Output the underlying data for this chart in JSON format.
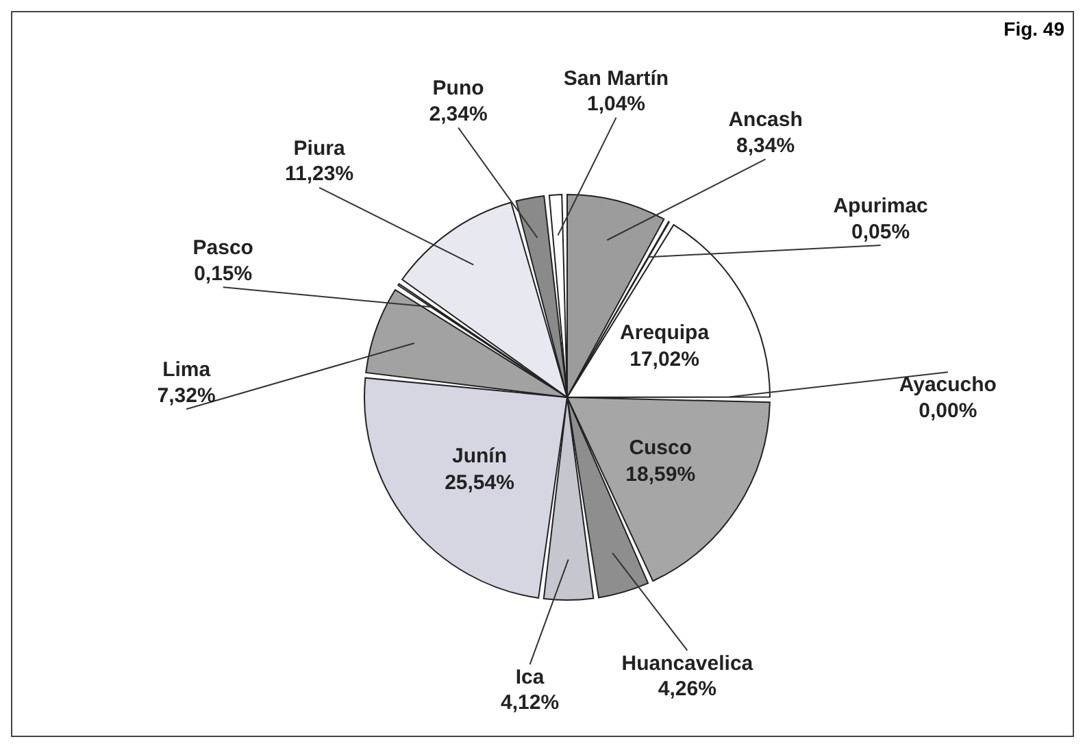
{
  "chart_data": {
    "type": "pie",
    "annotations": [
      "Fig. 49"
    ],
    "categories": [
      "Ancash",
      "Apurimac",
      "Arequipa",
      "Ayacucho",
      "Cusco",
      "Huancavelica",
      "Ica",
      "Junín",
      "Lima",
      "Pasco",
      "Piura",
      "Puno",
      "San Martín"
    ],
    "values": [
      8.34,
      0.05,
      17.02,
      0.0,
      18.59,
      4.26,
      4.12,
      25.54,
      7.32,
      0.15,
      11.23,
      2.34,
      1.04
    ],
    "value_labels": [
      "8,34%",
      "0,05%",
      "17,02%",
      "0,00%",
      "18,59%",
      "4,26%",
      "4,12%",
      "25,54%",
      "7,32%",
      "0,15%",
      "11,23%",
      "2,34%",
      "1,04%"
    ],
    "colors": [
      "#9c9c9c",
      "#bcbcbc",
      "#ffffff",
      "#e0e0e0",
      "#a6a6a6",
      "#8e8e8e",
      "#c6c6ce",
      "#d6d6e2",
      "#a2a2a2",
      "#d0d0d0",
      "#e8e8f0",
      "#8a8a8a",
      "#ffffff"
    ],
    "legend": false
  }
}
